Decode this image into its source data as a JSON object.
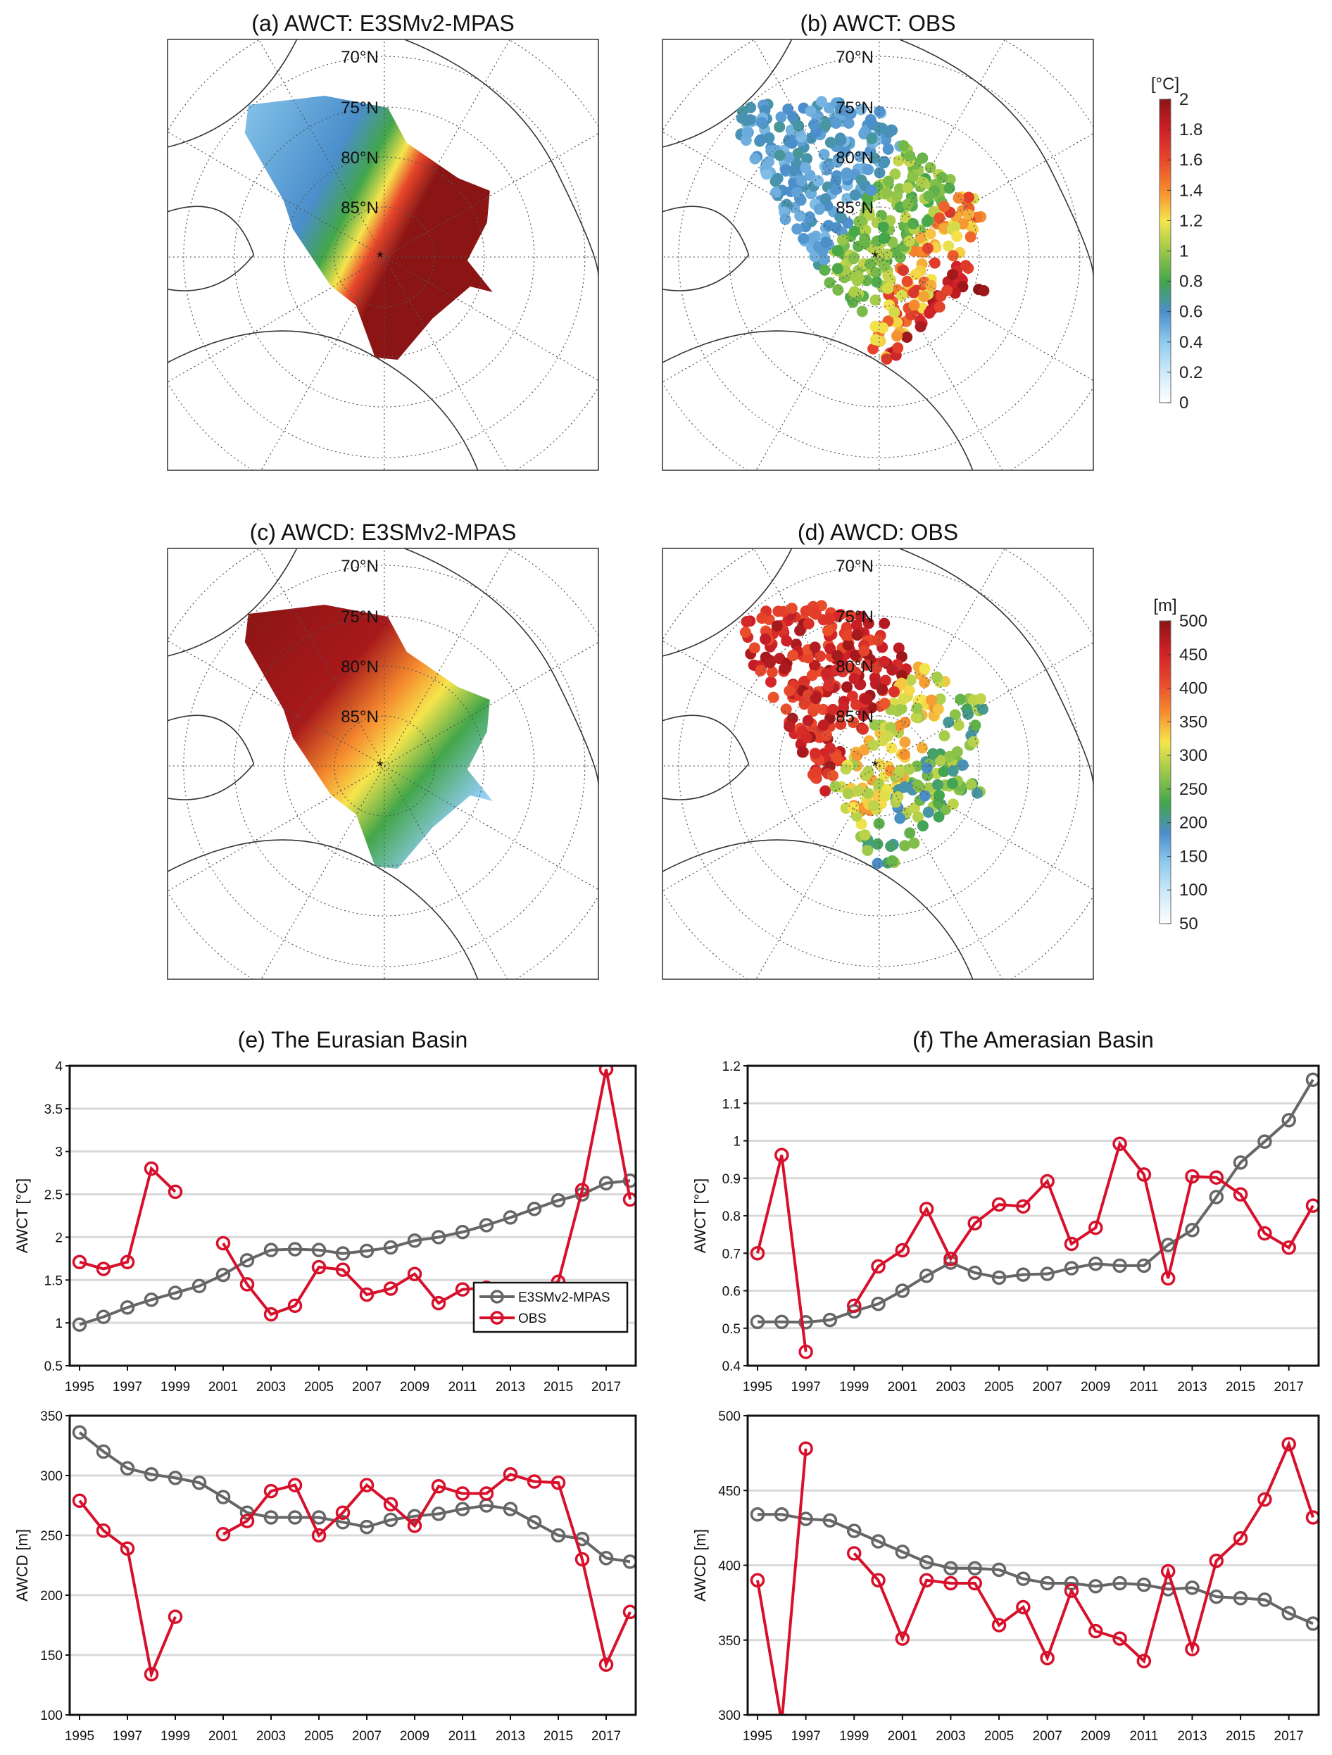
{
  "maps": [
    {
      "title": "(a) AWCT: E3SMv2-MPAS",
      "kind": "model",
      "var": "awct"
    },
    {
      "title": "(b) AWCT: OBS",
      "kind": "obs",
      "var": "awct"
    },
    {
      "title": "(c) AWCD: E3SMv2-MPAS",
      "kind": "model",
      "var": "awcd"
    },
    {
      "title": "(d) AWCD: OBS",
      "kind": "obs",
      "var": "awcd"
    }
  ],
  "lat_labels": [
    "70°N",
    "75°N",
    "80°N",
    "85°N"
  ],
  "colorbars": [
    {
      "label": "[°C]",
      "ticks": [
        "0",
        "0.2",
        "0.4",
        "0.6",
        "0.8",
        "1",
        "1.2",
        "1.4",
        "1.6",
        "1.8",
        "2"
      ],
      "range": [
        0,
        2
      ]
    },
    {
      "label": "[m]",
      "ticks": [
        "50",
        "100",
        "150",
        "200",
        "250",
        "300",
        "350",
        "400",
        "450",
        "500"
      ],
      "range": [
        50,
        500
      ]
    }
  ],
  "colormap": [
    "#ffffff",
    "#cfeaf8",
    "#8fcbee",
    "#4a8ecb",
    "#43a64a",
    "#9bc84a",
    "#f6e54c",
    "#f58b2e",
    "#e8482b",
    "#cf1f28",
    "#8b1515"
  ],
  "colors": {
    "model": "#666666",
    "obs": "#d7102b"
  },
  "chart_data": [
    {
      "type": "line",
      "title": "(e) The Eurasian Basin",
      "ylabel": "AWCT [°C]",
      "ylim": [
        0.5,
        4
      ],
      "yticks": [
        0.5,
        1,
        1.5,
        2,
        2.5,
        3,
        3.5,
        4
      ],
      "xlim": [
        1995,
        2018
      ],
      "xticks": [
        1995,
        1997,
        1999,
        2001,
        2003,
        2005,
        2007,
        2009,
        2011,
        2013,
        2015,
        2017
      ],
      "grid": true,
      "legend": "bottom-right",
      "x": [
        1995,
        1996,
        1997,
        1998,
        1999,
        2000,
        2001,
        2002,
        2003,
        2004,
        2005,
        2006,
        2007,
        2008,
        2009,
        2010,
        2011,
        2012,
        2013,
        2014,
        2015,
        2016,
        2017,
        2018
      ],
      "series": [
        {
          "name": "E3SMv2-MPAS",
          "values": [
            0.98,
            1.07,
            1.18,
            1.27,
            1.35,
            1.43,
            1.56,
            1.73,
            1.85,
            1.86,
            1.85,
            1.81,
            1.84,
            1.88,
            1.96,
            2.0,
            2.06,
            2.14,
            2.23,
            2.33,
            2.43,
            2.5,
            2.63,
            2.66
          ]
        },
        {
          "name": "OBS",
          "values": [
            1.71,
            1.63,
            1.71,
            2.8,
            2.53,
            null,
            1.93,
            1.45,
            1.1,
            1.2,
            1.65,
            1.62,
            1.33,
            1.4,
            1.57,
            1.23,
            1.39,
            1.41,
            1.26,
            1.38,
            1.48,
            2.55,
            3.96,
            2.44
          ]
        }
      ]
    },
    {
      "type": "line",
      "title": "(f) The Amerasian Basin",
      "ylabel": "AWCT [°C]",
      "ylim": [
        0.4,
        1.2
      ],
      "yticks": [
        0.4,
        0.5,
        0.6,
        0.7,
        0.8,
        0.9,
        1,
        1.1,
        1.2
      ],
      "xlim": [
        1995,
        2018
      ],
      "xticks": [
        1995,
        1997,
        1999,
        2001,
        2003,
        2005,
        2007,
        2009,
        2011,
        2013,
        2015,
        2017
      ],
      "grid": true,
      "x": [
        1995,
        1996,
        1997,
        1998,
        1999,
        2000,
        2001,
        2002,
        2003,
        2004,
        2005,
        2006,
        2007,
        2008,
        2009,
        2010,
        2011,
        2012,
        2013,
        2014,
        2015,
        2016,
        2017,
        2018
      ],
      "series": [
        {
          "name": "E3SMv2-MPAS",
          "values": [
            0.517,
            0.517,
            0.516,
            0.522,
            0.545,
            0.565,
            0.6,
            0.64,
            0.675,
            0.648,
            0.635,
            0.643,
            0.645,
            0.66,
            0.672,
            0.667,
            0.667,
            0.722,
            0.762,
            0.85,
            0.942,
            0.998,
            1.055,
            1.163
          ]
        },
        {
          "name": "OBS",
          "values": [
            0.7,
            0.962,
            0.437,
            null,
            0.56,
            0.665,
            0.708,
            0.818,
            0.685,
            0.78,
            0.83,
            0.825,
            0.892,
            0.725,
            0.768,
            0.992,
            0.91,
            0.633,
            0.905,
            0.902,
            0.857,
            0.753,
            0.715,
            0.827
          ]
        }
      ]
    },
    {
      "type": "line",
      "title": "",
      "ylabel": "AWCD [m]",
      "ylim": [
        100,
        350
      ],
      "yticks": [
        100,
        150,
        200,
        250,
        300,
        350
      ],
      "xlim": [
        1995,
        2018
      ],
      "xticks": [
        1995,
        1997,
        1999,
        2001,
        2003,
        2005,
        2007,
        2009,
        2011,
        2013,
        2015,
        2017
      ],
      "grid": true,
      "x": [
        1995,
        1996,
        1997,
        1998,
        1999,
        2000,
        2001,
        2002,
        2003,
        2004,
        2005,
        2006,
        2007,
        2008,
        2009,
        2010,
        2011,
        2012,
        2013,
        2014,
        2015,
        2016,
        2017,
        2018
      ],
      "series": [
        {
          "name": "E3SMv2-MPAS",
          "values": [
            336,
            320,
            306,
            301,
            298,
            294,
            282,
            269,
            265,
            265,
            265,
            261,
            257,
            263,
            266,
            268,
            272,
            275,
            272,
            261,
            250,
            247,
            231,
            228
          ]
        },
        {
          "name": "OBS",
          "values": [
            279,
            254,
            239,
            134,
            182,
            null,
            251,
            262,
            287,
            292,
            250,
            269,
            292,
            276,
            258,
            291,
            285,
            285,
            301,
            295,
            294,
            230,
            142,
            186
          ]
        }
      ]
    },
    {
      "type": "line",
      "title": "",
      "ylabel": "AWCD [m]",
      "ylim": [
        300,
        500
      ],
      "yticks": [
        300,
        350,
        400,
        450,
        500
      ],
      "xlim": [
        1995,
        2018
      ],
      "xticks": [
        1995,
        1997,
        1999,
        2001,
        2003,
        2005,
        2007,
        2009,
        2011,
        2013,
        2015,
        2017
      ],
      "grid": true,
      "x": [
        1995,
        1996,
        1997,
        1998,
        1999,
        2000,
        2001,
        2002,
        2003,
        2004,
        2005,
        2006,
        2007,
        2008,
        2009,
        2010,
        2011,
        2012,
        2013,
        2014,
        2015,
        2016,
        2017,
        2018
      ],
      "series": [
        {
          "name": "E3SMv2-MPAS",
          "values": [
            434,
            434,
            431,
            430,
            423,
            416,
            409,
            402,
            398,
            398,
            397,
            391,
            388,
            388,
            386,
            388,
            387,
            384,
            385,
            379,
            378,
            377,
            368,
            361
          ]
        },
        {
          "name": "OBS",
          "values": [
            390,
            295,
            478,
            null,
            408,
            390,
            351,
            390,
            388,
            388,
            360,
            372,
            338,
            383,
            356,
            351,
            336,
            396,
            344,
            403,
            418,
            444,
            481,
            432
          ]
        }
      ]
    }
  ]
}
